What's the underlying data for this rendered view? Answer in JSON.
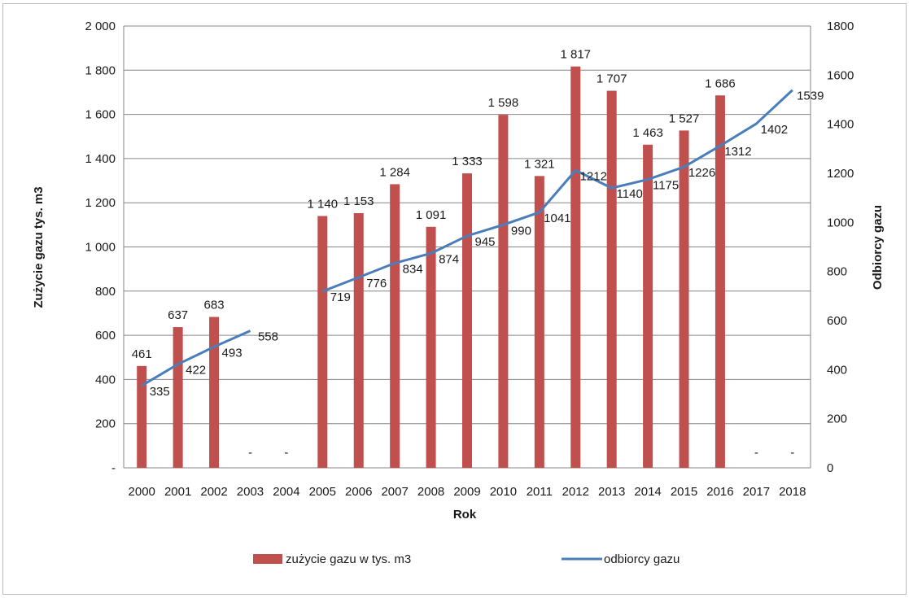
{
  "chart_data": {
    "type": "bar",
    "categories": [
      "2000",
      "2001",
      "2002",
      "2003",
      "2004",
      "2005",
      "2006",
      "2007",
      "2008",
      "2009",
      "2010",
      "2011",
      "2012",
      "2013",
      "2014",
      "2015",
      "2016",
      "2017",
      "2018"
    ],
    "xlabel": "Rok",
    "ylabel": "Zużycie gazu tys. m3",
    "y2label": "Odbiorcy gazu",
    "ylim": [
      0,
      2000
    ],
    "y2lim": [
      0,
      1800
    ],
    "yticks": [
      "-",
      "200",
      "400",
      "600",
      "800",
      "1 000",
      "1 200",
      "1 400",
      "1 600",
      "1 800",
      "2 000"
    ],
    "y2ticks": [
      "0",
      "200",
      "400",
      "600",
      "800",
      "1000",
      "1200",
      "1400",
      "1600",
      "1800"
    ],
    "grid": "horizontal",
    "legend_position": "bottom",
    "series": [
      {
        "name": "zużycie gazu w tys. m3",
        "type": "bar",
        "axis": "left",
        "color": "#c0504d",
        "values": [
          461,
          637,
          683,
          0,
          0,
          1140,
          1153,
          1284,
          1091,
          1333,
          1598,
          1321,
          1817,
          1707,
          1463,
          1527,
          1686,
          0,
          0
        ],
        "labels": [
          "461",
          "637",
          "683",
          "-",
          "-",
          "1 140",
          "1 153",
          "1 284",
          "1 091",
          "1 333",
          "1 598",
          "1 321",
          "1 817",
          "1 707",
          "1 463",
          "1 527",
          "1 686",
          "-",
          "-"
        ]
      },
      {
        "name": "odbiorcy gazu",
        "type": "line",
        "axis": "right",
        "color": "#4a7ebb",
        "values": [
          335,
          422,
          493,
          558,
          null,
          719,
          776,
          834,
          874,
          945,
          990,
          1041,
          1212,
          1140,
          1175,
          1226,
          1312,
          1402,
          1539
        ],
        "labels": [
          "335",
          "422",
          "493",
          "558",
          "",
          "719",
          "776",
          "834",
          "874",
          "945",
          "990",
          "1041",
          "1212",
          "1140",
          "1175",
          "1226",
          "1312",
          "1402",
          "1539"
        ]
      }
    ]
  }
}
